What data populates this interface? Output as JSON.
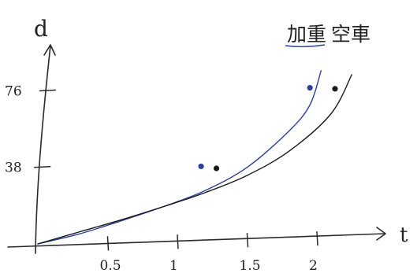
{
  "chart_data": {
    "type": "line",
    "title": "",
    "xlabel": "t",
    "ylabel": "d",
    "xlim": [
      0,
      2.4
    ],
    "ylim": [
      0,
      90
    ],
    "x_ticks": [
      0.5,
      1,
      1.5,
      2
    ],
    "x_tick_labels": [
      "0.5",
      "1",
      "1.5",
      "2"
    ],
    "y_ticks": [
      38,
      76
    ],
    "y_tick_labels": [
      "38",
      "76"
    ],
    "grid": false,
    "legend": "top-right",
    "series": [
      {
        "name": "加重",
        "color": "#2b3fa0",
        "x": [
          0,
          0.3,
          0.6,
          0.9,
          1.2,
          1.5,
          1.8,
          1.95,
          2.03
        ],
        "y": [
          0,
          5,
          11.5,
          18.5,
          26.5,
          38,
          56,
          69,
          86
        ],
        "markers": [
          {
            "x": 1.17,
            "y": 38.5
          },
          {
            "x": 1.95,
            "y": 77.5
          }
        ]
      },
      {
        "name": "空車",
        "color": "#1a1a1a",
        "x": [
          0,
          0.3,
          0.6,
          0.9,
          1.2,
          1.5,
          1.8,
          2.1,
          2.25
        ],
        "y": [
          0,
          6,
          12,
          18.5,
          25.5,
          34,
          46,
          64.5,
          84
        ],
        "markers": [
          {
            "x": 1.28,
            "y": 37.5
          },
          {
            "x": 2.13,
            "y": 77
          }
        ]
      }
    ]
  }
}
